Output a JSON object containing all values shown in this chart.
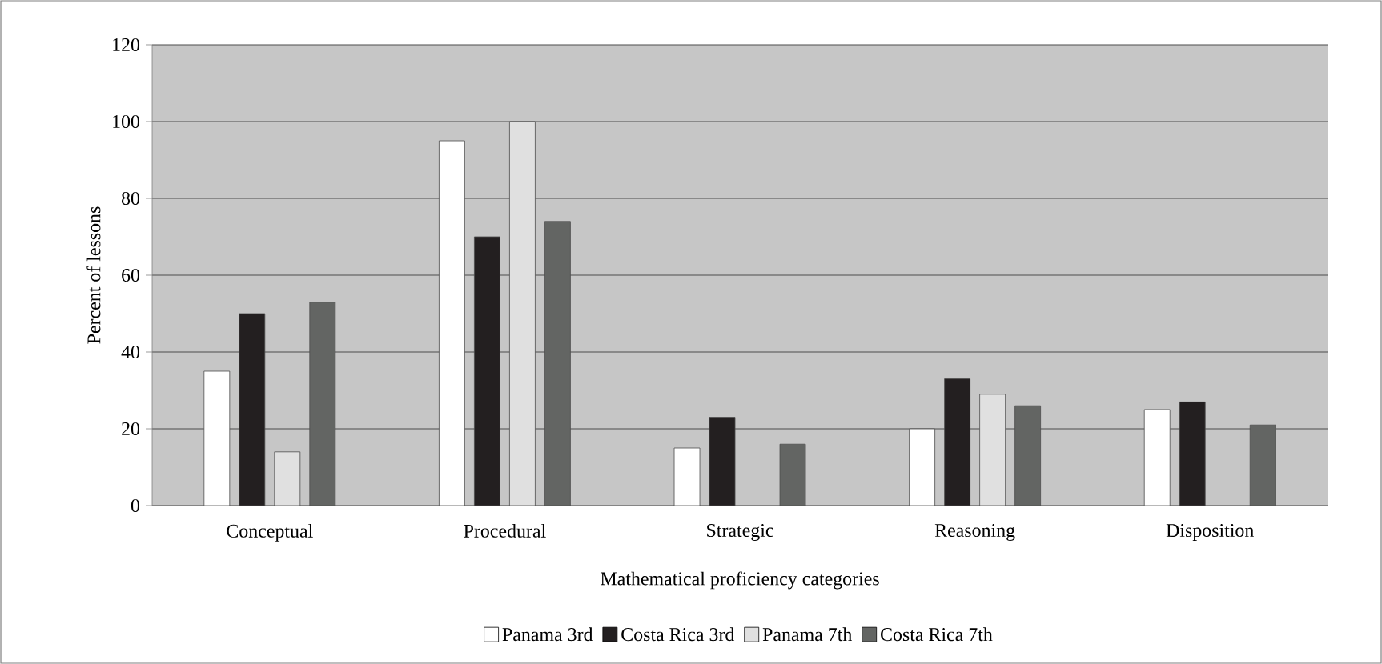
{
  "chart_data": {
    "type": "bar",
    "xlabel": "Mathematical proficiency categories",
    "ylabel": "Percent of lessons",
    "categories": [
      "Conceptual",
      "Procedural",
      "Strategic",
      "Reasoning",
      "Disposition"
    ],
    "series": [
      {
        "name": "Panama 3rd",
        "color": "#ffffff",
        "values": [
          35,
          95,
          15,
          20,
          25
        ]
      },
      {
        "name": "Costa Rica 3rd",
        "color": "#231f20",
        "values": [
          50,
          70,
          23,
          33,
          27
        ]
      },
      {
        "name": "Panama 7th",
        "color": "#e0e0e0",
        "values": [
          14,
          100,
          null,
          29,
          null
        ]
      },
      {
        "name": "Costa Rica 7th",
        "color": "#636563",
        "values": [
          53,
          74,
          16,
          26,
          21
        ]
      }
    ],
    "ylim": [
      0,
      120
    ],
    "yticks": [
      0,
      20,
      40,
      60,
      80,
      100,
      120
    ],
    "grid": "y",
    "legend": "bottom"
  }
}
